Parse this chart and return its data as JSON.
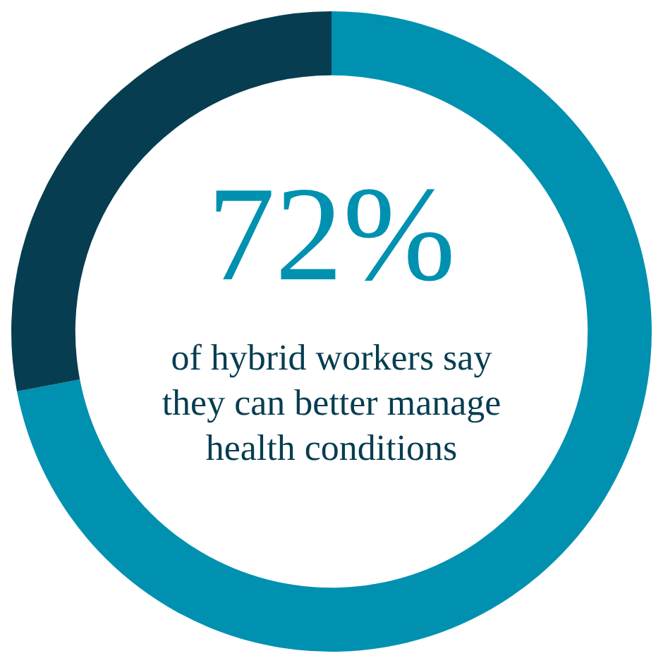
{
  "chart_data": {
    "type": "donut",
    "categories": [
      null,
      null
    ],
    "values": [
      72,
      28
    ],
    "colors": [
      "#0091b1",
      "#073d51"
    ],
    "value_labels": [
      "72%",
      null
    ],
    "annotations": [
      "of hybrid workers say they can better manage health conditions"
    ]
  }
}
